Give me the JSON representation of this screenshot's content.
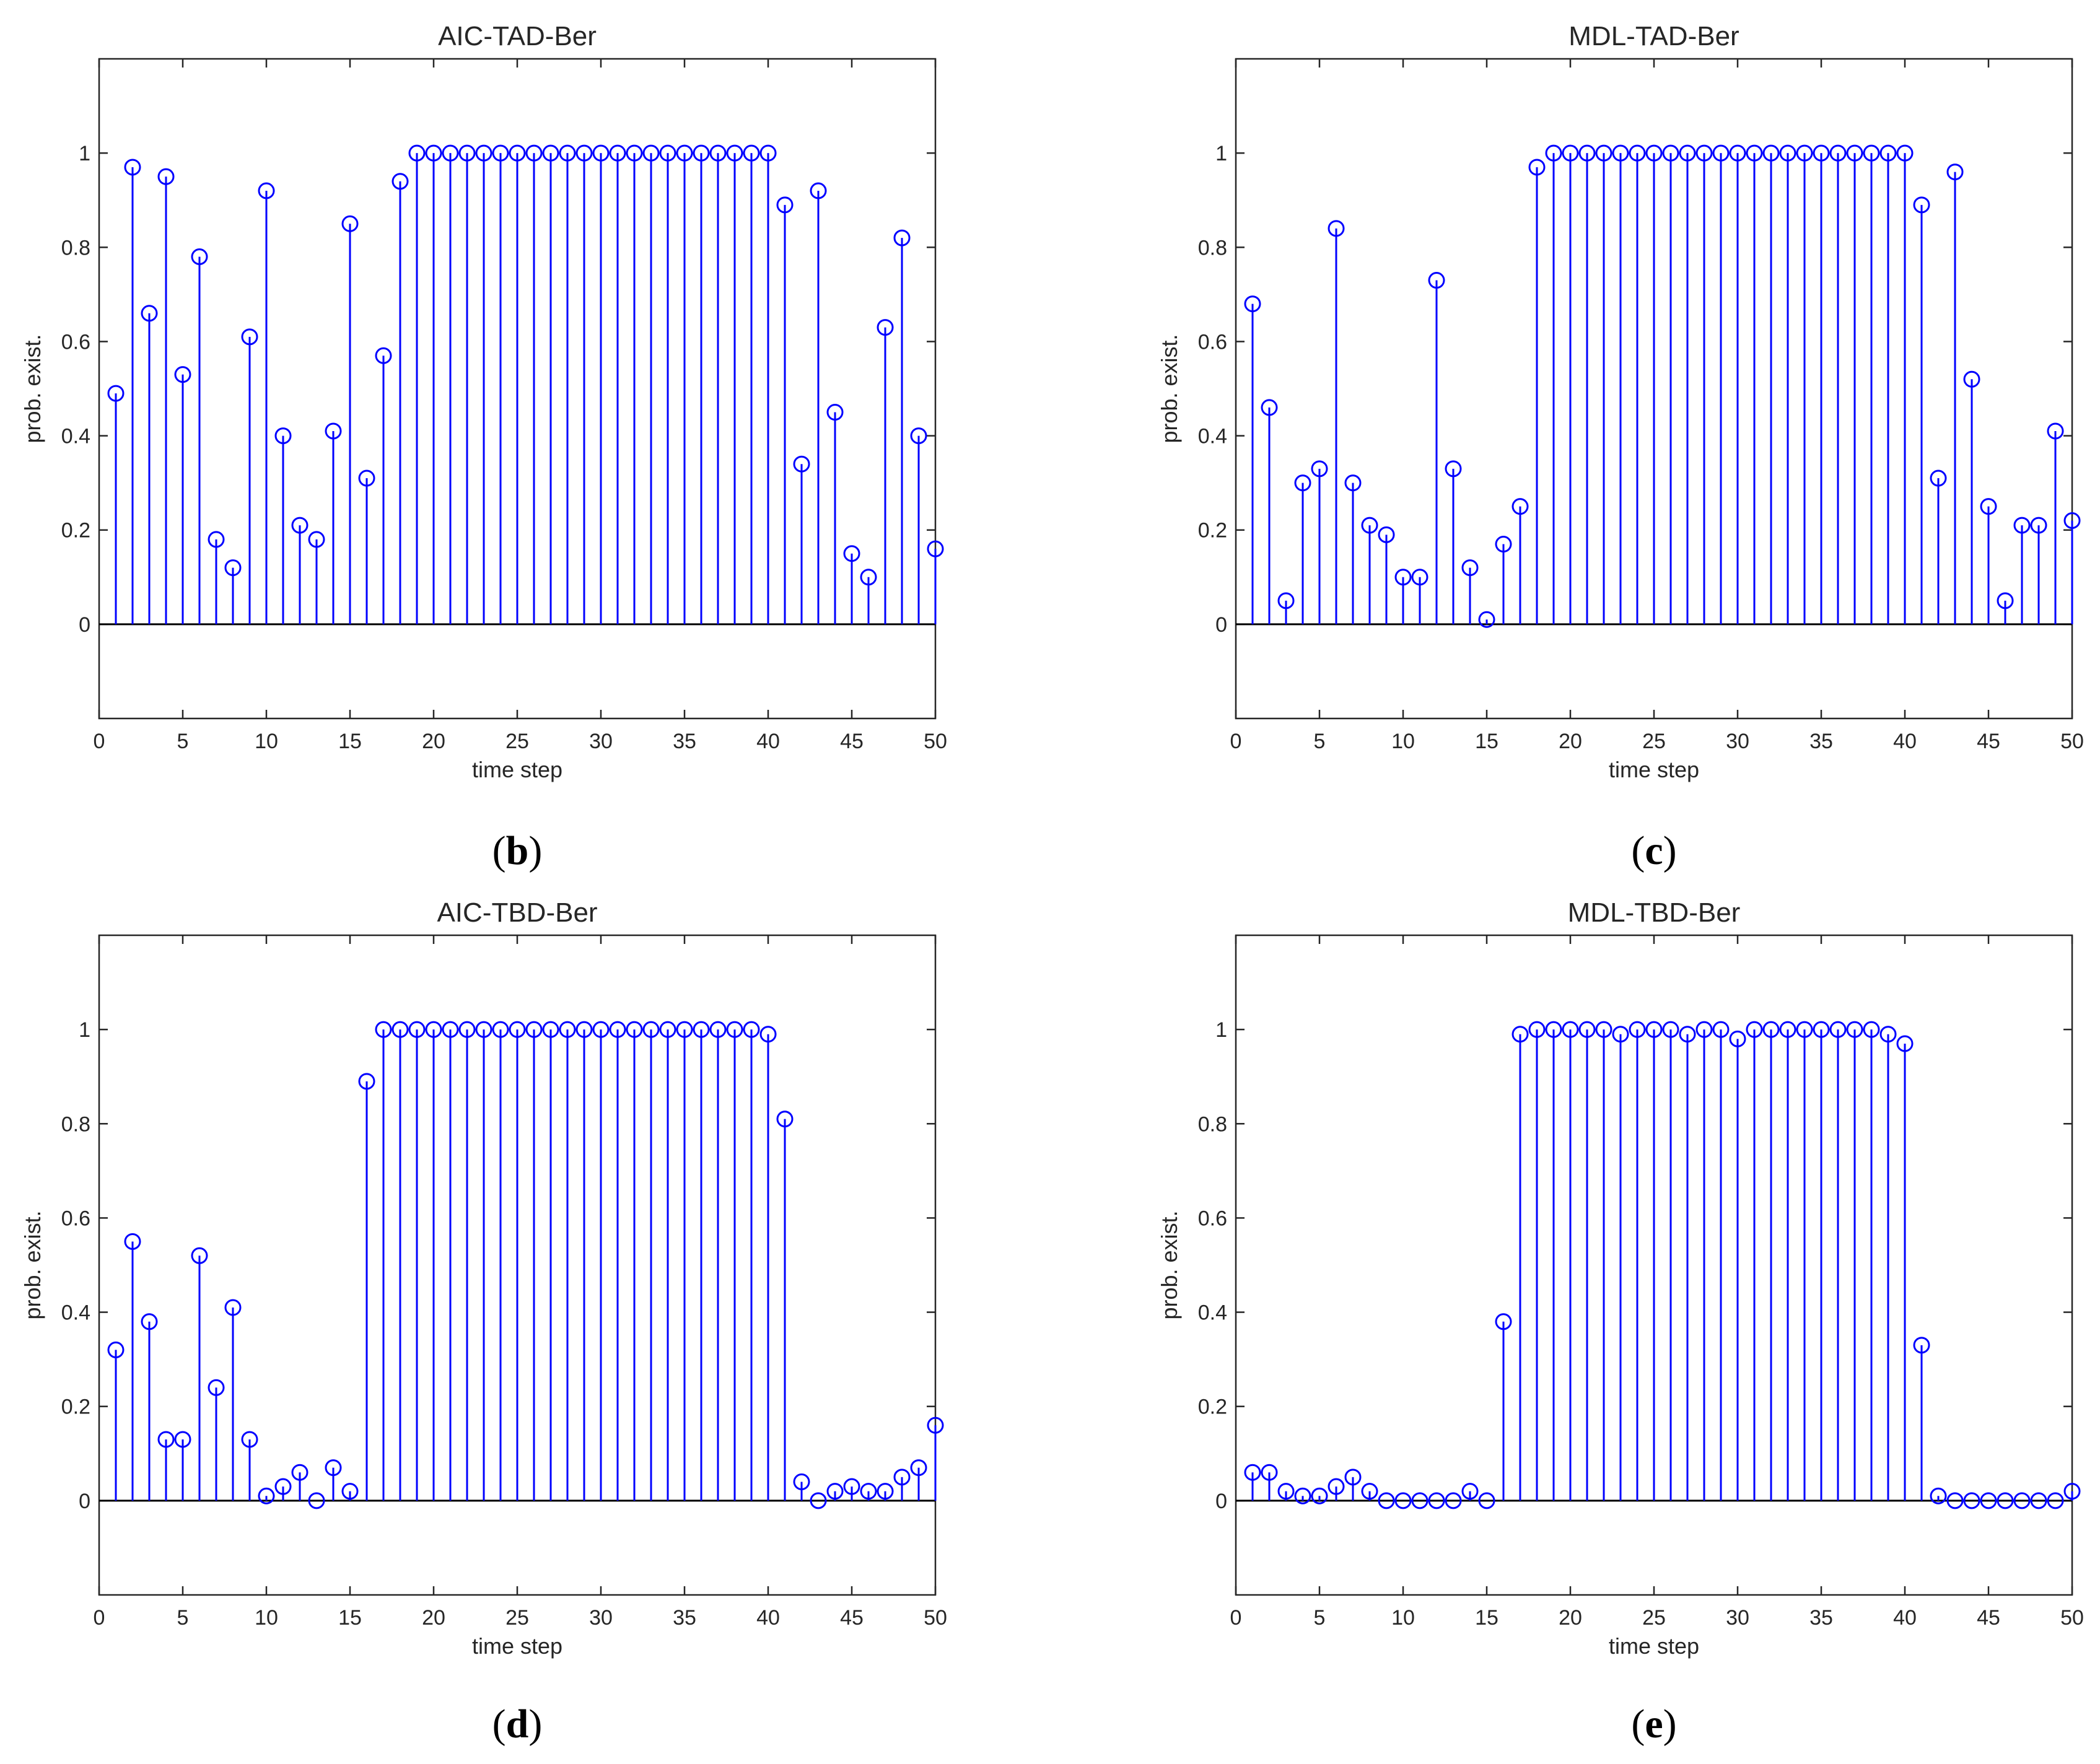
{
  "chart_data": [
    {
      "type": "stem",
      "title": "AIC-TAD-Ber",
      "xlabel": "time step",
      "ylabel": "prob. exist.",
      "caption_letter": "b",
      "xlim": [
        0,
        50
      ],
      "ylim": [
        -0.2,
        1.2
      ],
      "xticks": [
        0,
        5,
        10,
        15,
        20,
        25,
        30,
        35,
        40,
        45,
        50
      ],
      "yticks": [
        0,
        0.2,
        0.4,
        0.6,
        0.8,
        1
      ],
      "x": [
        1,
        2,
        3,
        4,
        5,
        6,
        7,
        8,
        9,
        10,
        11,
        12,
        13,
        14,
        15,
        16,
        17,
        18,
        19,
        20,
        21,
        22,
        23,
        24,
        25,
        26,
        27,
        28,
        29,
        30,
        31,
        32,
        33,
        34,
        35,
        36,
        37,
        38,
        39,
        40,
        41,
        42,
        43,
        44,
        45,
        46,
        47,
        48,
        49,
        50
      ],
      "y": [
        0.49,
        0.97,
        0.66,
        0.95,
        0.53,
        0.78,
        0.18,
        0.12,
        0.61,
        0.92,
        0.4,
        0.21,
        0.18,
        0.41,
        0.85,
        0.31,
        0.57,
        0.94,
        1,
        1,
        1,
        1,
        1,
        1,
        1,
        1,
        1,
        1,
        1,
        1,
        1,
        1,
        1,
        1,
        1,
        1,
        1,
        1,
        1,
        1,
        0.89,
        0.34,
        0.92,
        0.45,
        0.15,
        0.1,
        0.63,
        0.82,
        0.4,
        0.16
      ]
    },
    {
      "type": "stem",
      "title": "MDL-TAD-Ber",
      "xlabel": "time step",
      "ylabel": "prob. exist.",
      "caption_letter": "c",
      "xlim": [
        0,
        50
      ],
      "ylim": [
        -0.2,
        1.2
      ],
      "xticks": [
        0,
        5,
        10,
        15,
        20,
        25,
        30,
        35,
        40,
        45,
        50
      ],
      "yticks": [
        0,
        0.2,
        0.4,
        0.6,
        0.8,
        1
      ],
      "x": [
        1,
        2,
        3,
        4,
        5,
        6,
        7,
        8,
        9,
        10,
        11,
        12,
        13,
        14,
        15,
        16,
        17,
        18,
        19,
        20,
        21,
        22,
        23,
        24,
        25,
        26,
        27,
        28,
        29,
        30,
        31,
        32,
        33,
        34,
        35,
        36,
        37,
        38,
        39,
        40,
        41,
        42,
        43,
        44,
        45,
        46,
        47,
        48,
        49,
        50
      ],
      "y": [
        0.68,
        0.46,
        0.05,
        0.3,
        0.33,
        0.84,
        0.3,
        0.21,
        0.19,
        0.1,
        0.1,
        0.73,
        0.33,
        0.12,
        0.01,
        0.17,
        0.25,
        0.97,
        1,
        1,
        1,
        1,
        1,
        1,
        1,
        1,
        1,
        1,
        1,
        1,
        1,
        1,
        1,
        1,
        1,
        1,
        1,
        1,
        1,
        1,
        0.89,
        0.31,
        0.96,
        0.52,
        0.25,
        0.05,
        0.21,
        0.21,
        0.41,
        0.22
      ]
    },
    {
      "type": "stem",
      "title": "AIC-TBD-Ber",
      "xlabel": "time step",
      "ylabel": "prob. exist.",
      "caption_letter": "d",
      "xlim": [
        0,
        50
      ],
      "ylim": [
        -0.2,
        1.2
      ],
      "xticks": [
        0,
        5,
        10,
        15,
        20,
        25,
        30,
        35,
        40,
        45,
        50
      ],
      "yticks": [
        0,
        0.2,
        0.4,
        0.6,
        0.8,
        1
      ],
      "x": [
        1,
        2,
        3,
        4,
        5,
        6,
        7,
        8,
        9,
        10,
        11,
        12,
        13,
        14,
        15,
        16,
        17,
        18,
        19,
        20,
        21,
        22,
        23,
        24,
        25,
        26,
        27,
        28,
        29,
        30,
        31,
        32,
        33,
        34,
        35,
        36,
        37,
        38,
        39,
        40,
        41,
        42,
        43,
        44,
        45,
        46,
        47,
        48,
        49,
        50
      ],
      "y": [
        0.32,
        0.55,
        0.38,
        0.13,
        0.13,
        0.52,
        0.24,
        0.41,
        0.13,
        0.01,
        0.03,
        0.06,
        0.0,
        0.07,
        0.02,
        0.89,
        1,
        1,
        1,
        1,
        1,
        1,
        1,
        1,
        1,
        1,
        1,
        1,
        1,
        1,
        1,
        1,
        1,
        1,
        1,
        1,
        1,
        1,
        1,
        0.99,
        0.81,
        0.04,
        0.0,
        0.02,
        0.03,
        0.02,
        0.02,
        0.05,
        0.07,
        0.16
      ]
    },
    {
      "type": "stem",
      "title": "MDL-TBD-Ber",
      "xlabel": "time step",
      "ylabel": "prob. exist.",
      "caption_letter": "e",
      "xlim": [
        0,
        50
      ],
      "ylim": [
        -0.2,
        1.2
      ],
      "xticks": [
        0,
        5,
        10,
        15,
        20,
        25,
        30,
        35,
        40,
        45,
        50
      ],
      "yticks": [
        0,
        0.2,
        0.4,
        0.6,
        0.8,
        1
      ],
      "x": [
        1,
        2,
        3,
        4,
        5,
        6,
        7,
        8,
        9,
        10,
        11,
        12,
        13,
        14,
        15,
        16,
        17,
        18,
        19,
        20,
        21,
        22,
        23,
        24,
        25,
        26,
        27,
        28,
        29,
        30,
        31,
        32,
        33,
        34,
        35,
        36,
        37,
        38,
        39,
        40,
        41,
        42,
        43,
        44,
        45,
        46,
        47,
        48,
        49,
        50
      ],
      "y": [
        0.06,
        0.06,
        0.02,
        0.01,
        0.01,
        0.03,
        0.05,
        0.02,
        0.0,
        0.0,
        0.0,
        0.0,
        0.0,
        0.02,
        0.0,
        0.38,
        0.99,
        1,
        1,
        1,
        1,
        1,
        0.99,
        1,
        1,
        1,
        0.99,
        1,
        1,
        0.98,
        1,
        1,
        1,
        1,
        1,
        1,
        1,
        1,
        0.99,
        0.97,
        0.33,
        0.01,
        0.0,
        0.0,
        0.0,
        0.0,
        0.0,
        0.0,
        0.0,
        0.02
      ]
    }
  ],
  "tick_format": {
    "ydecimals": 1
  }
}
